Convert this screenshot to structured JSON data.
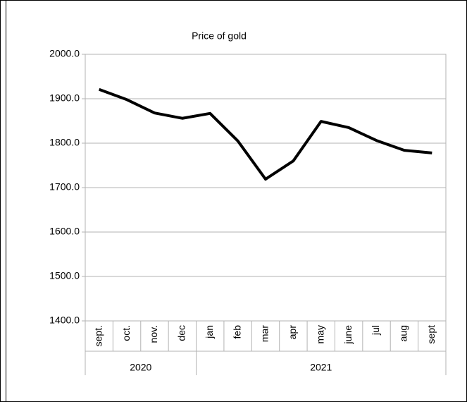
{
  "chart_data": {
    "type": "line",
    "title": "Price of gold",
    "categories": [
      "sept.",
      "oct.",
      "nov.",
      "dec",
      "jan",
      "feb",
      "mar",
      "apr",
      "may",
      "june",
      "jul",
      "aug",
      "sept"
    ],
    "groups": [
      {
        "label": "2020",
        "span": 4
      },
      {
        "label": "2021",
        "span": 9
      }
    ],
    "series": [
      {
        "name": "Price of gold",
        "color": "#000000",
        "values": [
          1921,
          1898,
          1868,
          1856,
          1867,
          1805,
          1719,
          1760,
          1849,
          1835,
          1806,
          1784,
          1778
        ]
      }
    ],
    "ylim": [
      1400,
      2000
    ],
    "yticks": [
      {
        "value": 1400,
        "label": "1400.0"
      },
      {
        "value": 1500,
        "label": "1500.0"
      },
      {
        "value": 1600,
        "label": "1600.0"
      },
      {
        "value": 1700,
        "label": "1700.0"
      },
      {
        "value": 1800,
        "label": "1800.0"
      },
      {
        "value": 1900,
        "label": "1900.0"
      },
      {
        "value": 2000,
        "label": "2000.0"
      }
    ],
    "grid": true
  }
}
